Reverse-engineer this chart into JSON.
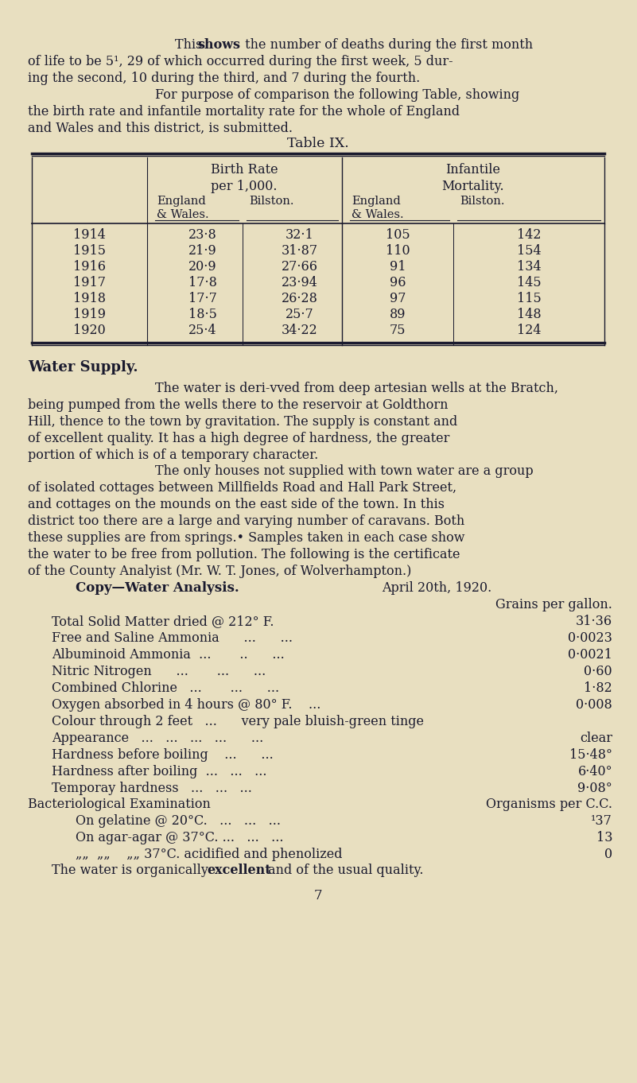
{
  "bg_color": "#e8dfc0",
  "text_color": "#1a1a2e",
  "page_width": 8.01,
  "page_height": 13.62,
  "table_title": "Table IX.",
  "table_years": [
    "1914",
    "1915",
    "1916",
    "1917",
    "1918",
    "1919",
    "1920"
  ],
  "birth_england": [
    "23·8",
    "21·9",
    "20·9",
    "17·8",
    "17·7",
    "18·5",
    "25·4"
  ],
  "birth_bilston": [
    "32·1",
    "31·87",
    "27·66",
    "23·94",
    "26·28",
    "25·7",
    "34·22"
  ],
  "infant_england": [
    "105",
    "110",
    "91",
    "96",
    "97",
    "89",
    "75"
  ],
  "infant_bilston": [
    "142",
    "154",
    "134",
    "145",
    "115",
    "148",
    "124"
  ],
  "para1_line1_a": "This ",
  "para1_line1_b": "shows",
  "para1_line1_c": " the number of deaths during the first month",
  "para1_line2": "of life to be 5¹, 29 of which occurred during the first week, 5 dur-",
  "para1_line3": "ing the second, 10 during the third, and 7 during the fourth.",
  "para2_line1": "For purpose of comparison the following Table, showing",
  "para2_line2": "the birth rate and infantile mortality rate for the whole of England",
  "para2_line3": "and Wales and this district, is submitted.",
  "water_heading": "Water Supply.",
  "water1_l1": "The water is deri­vved from deep artesian wells at the Bratch,",
  "water1_l2": "being pumped from the wells there to the reservoir at Goldthorn",
  "water1_l3": "Hill, thence to the town by gravitation. The supply is constant and",
  "water1_l4": "of excellent quality. It has a high degree of hardness, the greater",
  "water1_l5": "portion of which is of a temporary character.",
  "water2_l1": "The only houses not supplied with town water are a group",
  "water2_l2": "of isolated cottages between Millfields Road and Hall Park Street,",
  "water2_l3": "and cottages on the mounds on the east side of the town. In this",
  "water2_l4": "district too there are a large and varying number of caravans. Both",
  "water2_l5": "these supplies are from springs.• Samples taken in each case show",
  "water2_l6": "the water to be free from pollution. The following is the certificate",
  "water2_l7": "of the County Analyist (Mr. W. T. Jones, of Wolverhampton.)",
  "copy_heading": "Copy—Water Analysis.",
  "copy_date": "April 20th, 1920.",
  "copy_grains": "Grains per gallon.",
  "anal_labels": [
    "Total Solid Matter dried @ 212° F.",
    "Free and Saline Ammonia",
    "Albuminoid Ammonia  ...",
    "Nitric Nitrogen",
    "Combined Chlorine",
    "Oxygen absorbed in 4 hours @ 80° F.",
    "Colour through 2 feet",
    "Appearance",
    "Hardness before boiling",
    "Hardness after boiling  ...",
    "Temporay hardness"
  ],
  "anal_dots": [
    "",
    "      ...      ...",
    "       ..      ...",
    "      ...       ...      ...",
    "   ...       ...      ...",
    "    ...",
    "   ...      very pale bluish-green tinge",
    "   ...   ...   ...   ...      ...",
    "    ...      ...",
    "   ...   ...",
    "   ...   ...   ..."
  ],
  "anal_values": [
    "31·36",
    "0·0023",
    "0·0021",
    "0·60",
    "1·82",
    "0·008",
    "",
    "clear",
    "15·48°",
    "6·40°",
    "9·08°"
  ],
  "bacterio_heading": "Bacteriological Examination",
  "bacterio_right": "Organisms per C.C.",
  "bact_labels": [
    "On gelatine @ 20°C.",
    "On agar-agar @ 37°C. ...",
    "„„  „„    „„ 37°C. acidified and phenolized"
  ],
  "bact_dots": [
    "   ...   ...   ...",
    "   ...   ...",
    ""
  ],
  "bact_values": [
    "¹37",
    "13",
    "0"
  ],
  "final_line": "The water is organically ",
  "final_bold": "excellent",
  "final_rest": " and of the usual quality.",
  "page_number": "7"
}
